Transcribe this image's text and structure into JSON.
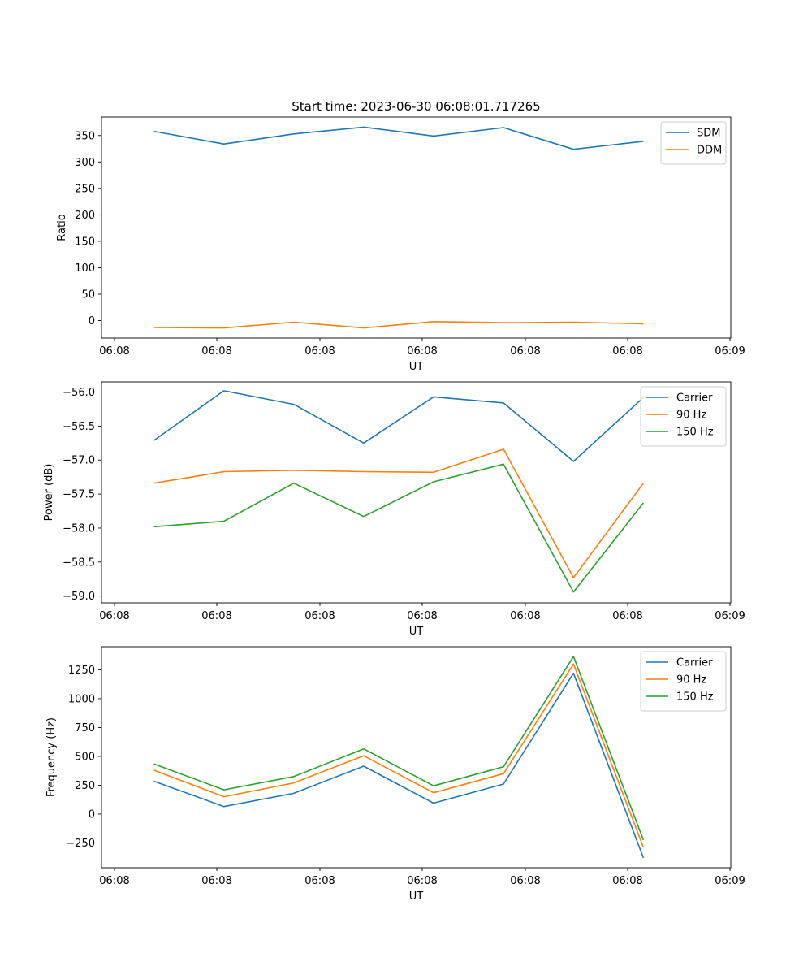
{
  "title": "Start time: 2023-06-30 06:08:01.717265",
  "colors": {
    "blue": "#1f77b4",
    "orange": "#ff7f0e",
    "green": "#2ca02c"
  },
  "chart_data": [
    {
      "type": "line",
      "xlabel": "UT",
      "ylabel": "Ratio",
      "x_tick_labels": [
        "06:08",
        "06:08",
        "06:08",
        "06:08",
        "06:08",
        "06:08",
        "06:09"
      ],
      "y_ticks": [
        0,
        50,
        100,
        150,
        200,
        250,
        300,
        350
      ],
      "y_tick_labels": [
        "0",
        "50",
        "100",
        "150",
        "200",
        "250",
        "300",
        "350"
      ],
      "xlim": [
        -0.5,
        8.5
      ],
      "ylim": [
        -33,
        385
      ],
      "legend_position": "top-right",
      "series": [
        {
          "name": "SDM",
          "color": "#1f77b4",
          "x": [
            0.25,
            1.25,
            2.25,
            3.25,
            4.25,
            5.25,
            6.25,
            7.25
          ],
          "values": [
            358,
            334,
            353,
            366,
            349,
            365,
            324,
            339
          ]
        },
        {
          "name": "DDM",
          "color": "#ff7f0e",
          "x": [
            0.25,
            1.25,
            2.25,
            3.25,
            4.25,
            5.25,
            6.25,
            7.25
          ],
          "values": [
            -13,
            -14,
            -3,
            -14,
            -2,
            -4,
            -3,
            -6
          ]
        }
      ]
    },
    {
      "type": "line",
      "xlabel": "UT",
      "ylabel": "Power (dB)",
      "x_tick_labels": [
        "06:08",
        "06:08",
        "06:08",
        "06:08",
        "06:08",
        "06:08",
        "06:09"
      ],
      "y_ticks": [
        -59.0,
        -58.5,
        -58.0,
        -57.5,
        -57.0,
        -56.5,
        -56.0
      ],
      "y_tick_labels": [
        "−59.0",
        "−58.5",
        "−58.0",
        "−57.5",
        "−57.0",
        "−56.5",
        "−56.0"
      ],
      "xlim": [
        -0.5,
        8.5
      ],
      "ylim": [
        -59.1,
        -55.85
      ],
      "legend_position": "top-right",
      "series": [
        {
          "name": "Carrier",
          "color": "#1f77b4",
          "x": [
            0.25,
            1.25,
            2.25,
            3.25,
            4.25,
            5.25,
            6.25,
            7.25
          ],
          "values": [
            -56.71,
            -55.98,
            -56.18,
            -56.75,
            -56.07,
            -56.16,
            -57.02,
            -56.08
          ]
        },
        {
          "name": "90 Hz",
          "color": "#ff7f0e",
          "x": [
            0.25,
            1.25,
            2.25,
            3.25,
            4.25,
            5.25,
            6.25,
            7.25
          ],
          "values": [
            -57.34,
            -57.17,
            -57.15,
            -57.17,
            -57.18,
            -56.84,
            -58.73,
            -57.34
          ]
        },
        {
          "name": "150 Hz",
          "color": "#2ca02c",
          "x": [
            0.25,
            1.25,
            2.25,
            3.25,
            4.25,
            5.25,
            6.25,
            7.25
          ],
          "values": [
            -57.98,
            -57.9,
            -57.34,
            -57.83,
            -57.32,
            -57.06,
            -58.94,
            -57.63
          ]
        }
      ]
    },
    {
      "type": "line",
      "xlabel": "UT",
      "ylabel": "Frequency (Hz)",
      "x_tick_labels": [
        "06:08",
        "06:08",
        "06:08",
        "06:08",
        "06:08",
        "06:08",
        "06:09"
      ],
      "y_ticks": [
        -250,
        0,
        250,
        500,
        750,
        1000,
        1250
      ],
      "y_tick_labels": [
        "−250",
        "0",
        "250",
        "500",
        "750",
        "1000",
        "1250"
      ],
      "xlim": [
        -0.5,
        8.5
      ],
      "ylim": [
        -465,
        1450
      ],
      "legend_position": "top-right",
      "series": [
        {
          "name": "Carrier",
          "color": "#1f77b4",
          "x": [
            0.25,
            1.25,
            2.25,
            3.25,
            4.25,
            5.25,
            6.25,
            7.25
          ],
          "values": [
            285,
            65,
            180,
            415,
            95,
            260,
            1220,
            -380
          ]
        },
        {
          "name": "90 Hz",
          "color": "#ff7f0e",
          "x": [
            0.25,
            1.25,
            2.25,
            3.25,
            4.25,
            5.25,
            6.25,
            7.25
          ],
          "values": [
            380,
            150,
            270,
            505,
            185,
            350,
            1300,
            -290
          ]
        },
        {
          "name": "150 Hz",
          "color": "#2ca02c",
          "x": [
            0.25,
            1.25,
            2.25,
            3.25,
            4.25,
            5.25,
            6.25,
            7.25
          ],
          "values": [
            435,
            210,
            325,
            565,
            245,
            410,
            1365,
            -225
          ]
        }
      ]
    }
  ]
}
